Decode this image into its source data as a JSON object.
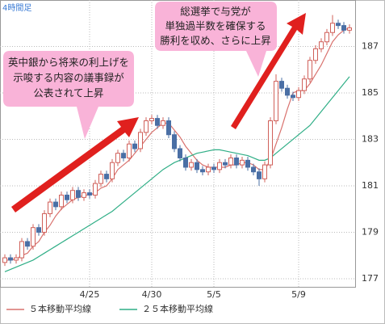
{
  "chart_data": {
    "type": "candlestick",
    "title": "4時間足",
    "categories": [
      null,
      null,
      null,
      null,
      null,
      null,
      null,
      null,
      null,
      null,
      null,
      null,
      null,
      null,
      null,
      "4/25",
      null,
      null,
      null,
      null,
      null,
      null,
      null,
      null,
      null,
      null,
      "4/30",
      null,
      null,
      null,
      null,
      null,
      null,
      null,
      null,
      null,
      null,
      "5/5",
      null,
      null,
      null,
      null,
      null,
      null,
      null,
      null,
      null,
      null,
      null,
      null,
      null,
      null,
      "5/9",
      null,
      null,
      null,
      null,
      null,
      null,
      null,
      null,
      null
    ],
    "open": [
      177.7,
      177.9,
      177.8,
      177.9,
      178.6,
      178.4,
      179.2,
      179.0,
      179.8,
      180.3,
      180.1,
      180.6,
      180.4,
      180.8,
      180.5,
      180.7,
      180.6,
      181.1,
      181.5,
      181.3,
      182.0,
      182.4,
      182.2,
      182.8,
      182.6,
      183.3,
      183.8,
      183.9,
      183.6,
      183.8,
      183.2,
      182.6,
      182.2,
      181.8,
      182.0,
      181.7,
      181.6,
      181.8,
      181.7,
      182.0,
      181.9,
      182.2,
      181.9,
      182.1,
      181.8,
      181.6,
      181.3,
      181.9,
      183.8,
      185.5,
      185.2,
      184.9,
      184.8,
      185.1,
      185.6,
      186.4,
      186.9,
      187.2,
      187.6,
      188.0,
      187.9,
      187.7
    ],
    "high": [
      178.05,
      178.05,
      178.05,
      178.75,
      178.75,
      179.35,
      179.35,
      179.95,
      180.45,
      180.45,
      180.75,
      180.75,
      180.95,
      180.95,
      180.85,
      180.85,
      181.25,
      181.65,
      181.65,
      182.15,
      182.55,
      182.55,
      182.95,
      182.95,
      183.45,
      183.95,
      184.05,
      184.05,
      183.95,
      183.95,
      183.35,
      182.75,
      182.35,
      182.15,
      182.15,
      181.85,
      181.95,
      181.95,
      182.15,
      182.15,
      182.35,
      182.35,
      182.25,
      182.25,
      181.95,
      181.75,
      182.05,
      183.95,
      185.8,
      185.65,
      185.35,
      185.05,
      185.25,
      185.75,
      186.55,
      187.05,
      187.35,
      187.75,
      188.35,
      188.15,
      188.05,
      187.95
    ],
    "low": [
      177.55,
      177.65,
      177.65,
      177.75,
      178.25,
      178.25,
      178.85,
      178.85,
      179.65,
      179.95,
      179.95,
      180.25,
      180.25,
      180.35,
      180.35,
      180.45,
      180.45,
      180.95,
      181.15,
      181.15,
      181.85,
      182.05,
      182.05,
      182.45,
      182.45,
      183.15,
      183.65,
      183.45,
      183.45,
      183.05,
      182.45,
      182.05,
      181.65,
      181.65,
      181.55,
      181.45,
      181.45,
      181.55,
      181.55,
      181.75,
      181.75,
      181.75,
      181.75,
      181.65,
      181.45,
      181.0,
      181.15,
      181.75,
      183.65,
      185.05,
      184.75,
      184.65,
      184.65,
      184.95,
      185.45,
      186.25,
      186.75,
      187.05,
      187.45,
      187.75,
      187.55,
      187.55
    ],
    "close": [
      177.9,
      177.8,
      177.9,
      178.6,
      178.4,
      179.2,
      179.0,
      179.8,
      180.3,
      180.1,
      180.6,
      180.4,
      180.8,
      180.5,
      180.7,
      180.6,
      181.1,
      181.5,
      181.3,
      182.0,
      182.4,
      182.2,
      182.8,
      182.6,
      183.3,
      183.8,
      183.9,
      183.6,
      183.8,
      183.2,
      182.6,
      182.2,
      181.8,
      182.0,
      181.7,
      181.6,
      181.8,
      181.7,
      182.0,
      181.9,
      182.2,
      181.9,
      182.1,
      181.8,
      181.6,
      181.3,
      181.9,
      183.8,
      185.5,
      185.2,
      184.9,
      184.8,
      185.1,
      185.6,
      186.4,
      186.9,
      187.2,
      187.6,
      188.0,
      187.9,
      187.7,
      187.8
    ],
    "up_color": "#d0605a",
    "down_color": "#4a6fa5",
    "series": [
      {
        "name": "５本移動平均線",
        "color": "#d9726e",
        "values": [
          177.8,
          177.8,
          177.85,
          178.0,
          178.1,
          178.4,
          178.6,
          179.0,
          179.3,
          179.7,
          180.0,
          180.2,
          180.4,
          180.5,
          180.6,
          180.6,
          180.7,
          180.9,
          181.0,
          181.3,
          181.7,
          181.9,
          182.1,
          182.4,
          182.7,
          183.0,
          183.3,
          183.5,
          183.7,
          183.7,
          183.4,
          183.1,
          182.7,
          182.4,
          182.1,
          181.9,
          181.8,
          181.8,
          181.8,
          181.8,
          181.9,
          181.9,
          182.0,
          182.0,
          181.9,
          181.7,
          181.7,
          182.1,
          182.8,
          183.5,
          184.3,
          185.0,
          185.1,
          185.1,
          185.4,
          185.8,
          186.2,
          186.7,
          187.2,
          187.5,
          187.7,
          187.8
        ]
      },
      {
        "name": "２５本移動平均線",
        "color": "#2fae86",
        "values": [
          177.3,
          177.4,
          177.5,
          177.6,
          177.7,
          177.8,
          177.95,
          178.1,
          178.25,
          178.4,
          178.55,
          178.7,
          178.85,
          179.0,
          179.15,
          179.3,
          179.45,
          179.6,
          179.75,
          179.9,
          180.1,
          180.3,
          180.5,
          180.7,
          180.9,
          181.1,
          181.3,
          181.5,
          181.7,
          181.85,
          182.0,
          182.1,
          182.2,
          182.3,
          182.4,
          182.45,
          182.5,
          182.55,
          182.55,
          182.5,
          182.45,
          182.4,
          182.35,
          182.3,
          182.2,
          182.1,
          182.1,
          182.2,
          182.4,
          182.6,
          182.8,
          183.0,
          183.2,
          183.4,
          183.6,
          183.9,
          184.2,
          184.5,
          184.8,
          185.1,
          185.4,
          185.7
        ]
      }
    ],
    "ylim": [
      176.65,
      189.0
    ],
    "yticks": [
      177,
      179,
      181,
      183,
      185,
      187
    ],
    "grid": true,
    "annotations": [
      {
        "lines": [
          "英中銀から将来の利上げを",
          "示唆する内容の議事録が",
          "公表されて上昇"
        ]
      },
      {
        "lines": [
          "総選挙で与党が",
          "単独過半数を確保する",
          "勝利を収め、さらに上昇"
        ]
      }
    ]
  }
}
